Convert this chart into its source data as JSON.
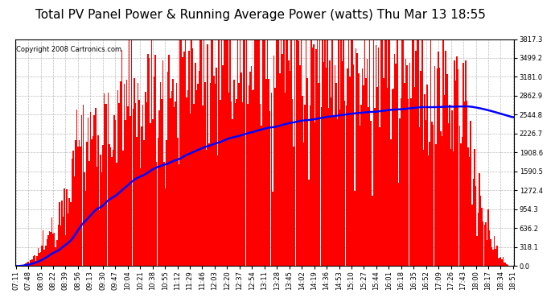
{
  "title": "Total PV Panel Power & Running Average Power (watts) Thu Mar 13 18:55",
  "copyright": "Copyright 2008 Cartronics.com",
  "ymax": 3817.3,
  "ymin": 0.0,
  "yticks": [
    0.0,
    318.1,
    636.2,
    954.3,
    1272.4,
    1590.5,
    1908.6,
    2226.7,
    2544.8,
    2862.9,
    3181.0,
    3499.2,
    3817.3
  ],
  "xtick_labels": [
    "07:11",
    "07:48",
    "08:05",
    "08:22",
    "08:39",
    "08:56",
    "09:13",
    "09:30",
    "09:47",
    "10:04",
    "10:21",
    "10:38",
    "10:55",
    "11:12",
    "11:29",
    "11:46",
    "12:03",
    "12:20",
    "12:37",
    "12:54",
    "13:11",
    "13:28",
    "13:45",
    "14:02",
    "14:19",
    "14:36",
    "14:53",
    "15:10",
    "15:27",
    "15:44",
    "16:01",
    "16:18",
    "16:35",
    "16:52",
    "17:09",
    "17:26",
    "17:43",
    "18:00",
    "18:17",
    "18:34",
    "18:51"
  ],
  "bar_color": "#FF0000",
  "avg_line_color": "#0000FF",
  "fig_bg_color": "#ffffff",
  "plot_bg_color": "#ffffff",
  "grid_color": "#aaaaaa",
  "title_fontsize": 11,
  "copyright_fontsize": 6,
  "tick_fontsize": 6,
  "n_bars": 400,
  "n_avg": 400,
  "seed": 12345
}
